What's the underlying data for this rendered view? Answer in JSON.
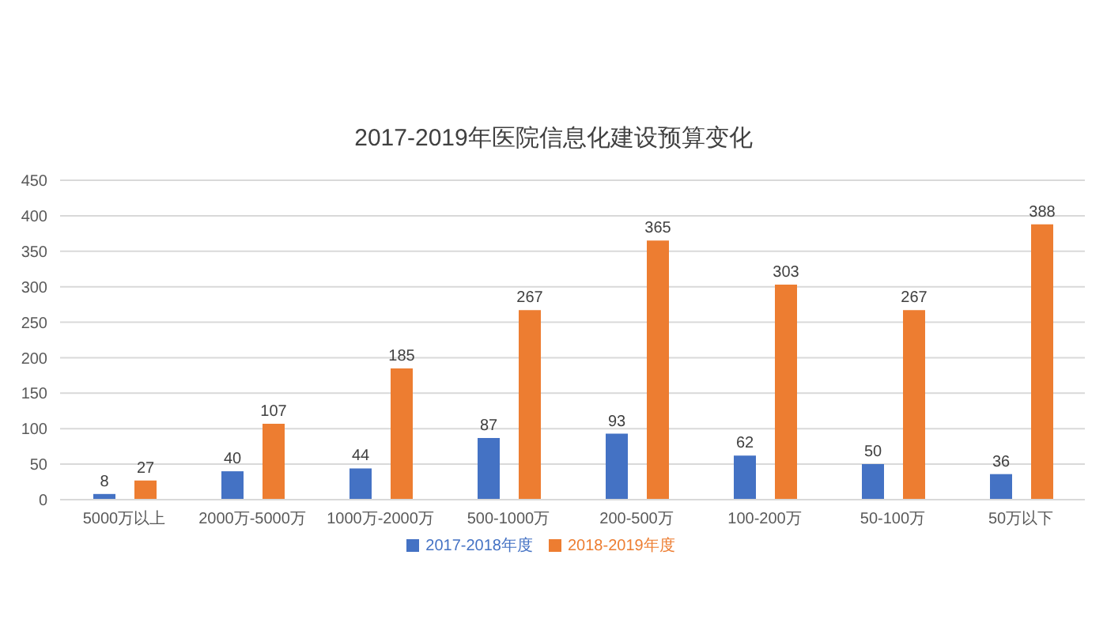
{
  "chart_data": {
    "type": "bar",
    "title": "2017-2019年医院信息化建设预算变化",
    "categories": [
      "5000万以上",
      "2000万-5000万",
      "1000万-2000万",
      "500-1000万",
      "200-500万",
      "100-200万",
      "50-100万",
      "50万以下"
    ],
    "series": [
      {
        "name": "2017-2018年度",
        "color": "#4472c4",
        "values": [
          8,
          40,
          44,
          87,
          93,
          62,
          50,
          36
        ]
      },
      {
        "name": "2018-2019年度",
        "color": "#ed7d31",
        "values": [
          27,
          107,
          185,
          267,
          365,
          303,
          267,
          388
        ]
      }
    ],
    "ylim": [
      0,
      450
    ],
    "yticks": [
      0,
      50,
      100,
      150,
      200,
      250,
      300,
      350,
      400,
      450
    ],
    "grid": "y",
    "legend": "bottom",
    "data_labels": true
  }
}
